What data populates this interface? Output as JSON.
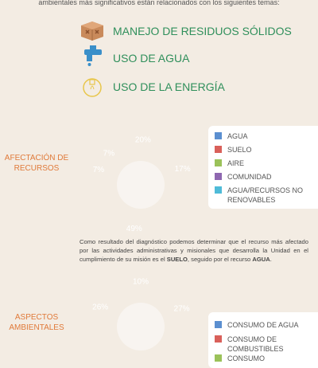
{
  "intro": "ambientales más significativos están relacionados con los siguientes temas:",
  "topics": [
    "MANEJO DE RESIDUOS SÓLIDOS",
    "USO DE AGUA",
    "USO DE LA ENERGÍA"
  ],
  "paragraph": [
    {
      "text": "Como resultado del diagnóstico podemos determinar que el recurso más afectado por las actividades administrativas y misionales que desarrolla la Unidad en el cumplimiento de su misión es el ",
      "bold": false
    },
    {
      "text": "SUELO",
      "bold": true
    },
    {
      "text": ", seguido por el recurso ",
      "bold": false
    },
    {
      "text": "AGUA",
      "bold": true
    },
    {
      "text": ".",
      "bold": false
    }
  ],
  "chart_data": [
    {
      "type": "pie",
      "title": "AFECTACIÓN DE RECURSOS",
      "categories": [
        "AGUA",
        "SUELO",
        "AIRE",
        "COMUNIDAD",
        "AGUA/RECURSOS NO RENOVABLES"
      ],
      "values": [
        17,
        49,
        7,
        7,
        20
      ],
      "value_labels": [
        "17%",
        "49%",
        "7%",
        "7%",
        "20%"
      ],
      "colors": [
        "#5b8fd0",
        "#d9605a",
        "#9bc25a",
        "#8e67b0",
        "#4fbbd8"
      ]
    },
    {
      "type": "pie",
      "title": "ASPECTOS AMBIENTALES",
      "categories": [
        "CONSUMO DE AGUA",
        "CONSUMO DE COMBUSTIBLES",
        "CONSUMO",
        null,
        null
      ],
      "values": [
        27,
        20,
        17,
        26,
        10
      ],
      "value_labels": [
        "27%",
        null,
        null,
        "26%",
        "10%"
      ],
      "colors": [
        "#5b8fd0",
        "#d9605a",
        "#9bc25a",
        "#8e67b0",
        "#4fbbd8"
      ]
    }
  ]
}
